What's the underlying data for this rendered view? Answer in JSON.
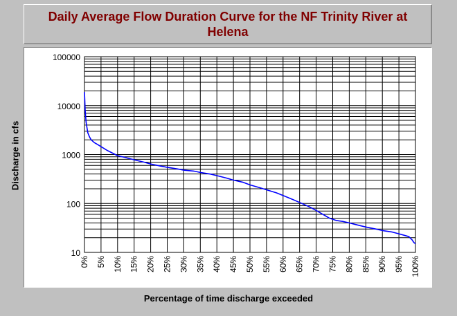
{
  "chart_data": {
    "type": "line",
    "title": "Daily Average Flow Duration Curve for the NF Trinity River at Helena",
    "xlabel": "Percentage of time discharge exceeded",
    "ylabel": "Discharge in cfs",
    "xlim": [
      0,
      100
    ],
    "ylim": [
      10,
      100000
    ],
    "yscale": "log",
    "grid": true,
    "x_ticks": [
      "0%",
      "5%",
      "10%",
      "15%",
      "20%",
      "25%",
      "30%",
      "35%",
      "40%",
      "45%",
      "50%",
      "55%",
      "60%",
      "65%",
      "70%",
      "75%",
      "80%",
      "85%",
      "90%",
      "95%",
      "100%"
    ],
    "y_ticks": [
      "10",
      "100",
      "1000",
      "10000",
      "100000"
    ],
    "series": [
      {
        "color": "#0000ff",
        "x": [
          0,
          0.2,
          0.5,
          1,
          1.5,
          2,
          3,
          4,
          5,
          7,
          10,
          12,
          15,
          18,
          20,
          23,
          25,
          28,
          30,
          33,
          35,
          38,
          40,
          43,
          45,
          48,
          50,
          53,
          55,
          58,
          60,
          63,
          65,
          68,
          70,
          72,
          74,
          76,
          78,
          80,
          82,
          85,
          88,
          90,
          93,
          95,
          97,
          98,
          99,
          99.5,
          100
        ],
        "y": [
          19000,
          8000,
          4500,
          2800,
          2300,
          2000,
          1750,
          1600,
          1450,
          1200,
          950,
          880,
          780,
          700,
          640,
          580,
          550,
          510,
          480,
          460,
          430,
          400,
          370,
          330,
          300,
          270,
          240,
          210,
          190,
          165,
          145,
          120,
          105,
          85,
          72,
          60,
          50,
          45,
          43,
          40,
          37,
          33,
          30,
          28,
          26,
          24,
          22,
          21,
          18,
          16,
          15
        ]
      }
    ]
  }
}
